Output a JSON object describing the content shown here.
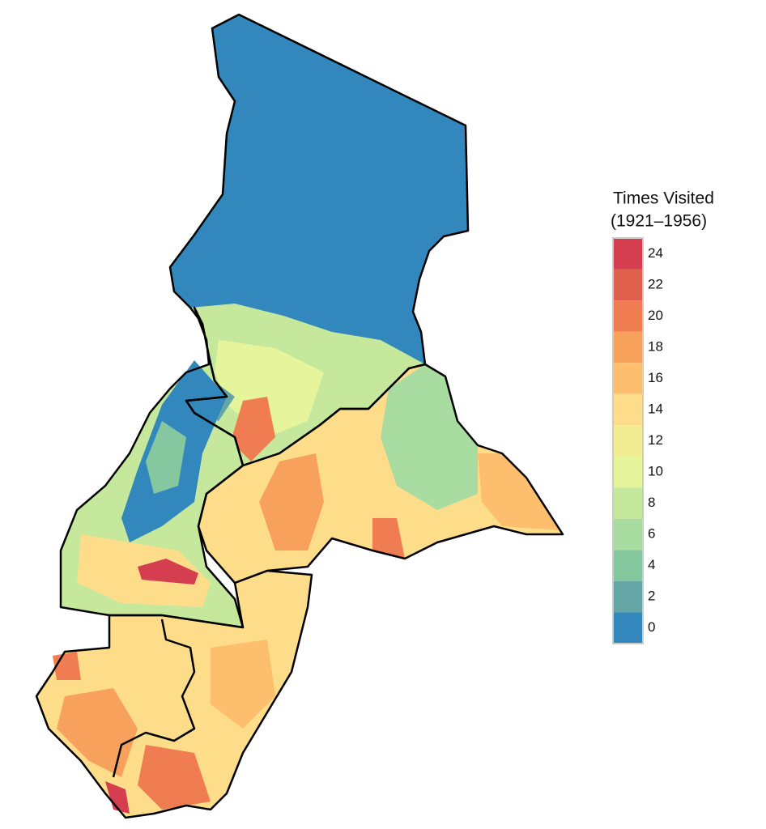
{
  "legend": {
    "title": "Times Visited",
    "subtitle": "(1921–1956)",
    "ticks": [
      24,
      22,
      20,
      18,
      16,
      14,
      12,
      10,
      8,
      6,
      4,
      2,
      0
    ],
    "colors": [
      "#d53e4f",
      "#e0604e",
      "#f07d52",
      "#f8a15c",
      "#fdbe6e",
      "#fedd8a",
      "#f2ec94",
      "#e6f49b",
      "#c6e89c",
      "#a9dca0",
      "#85c79f",
      "#65a5a5",
      "#3288bd"
    ]
  }
}
